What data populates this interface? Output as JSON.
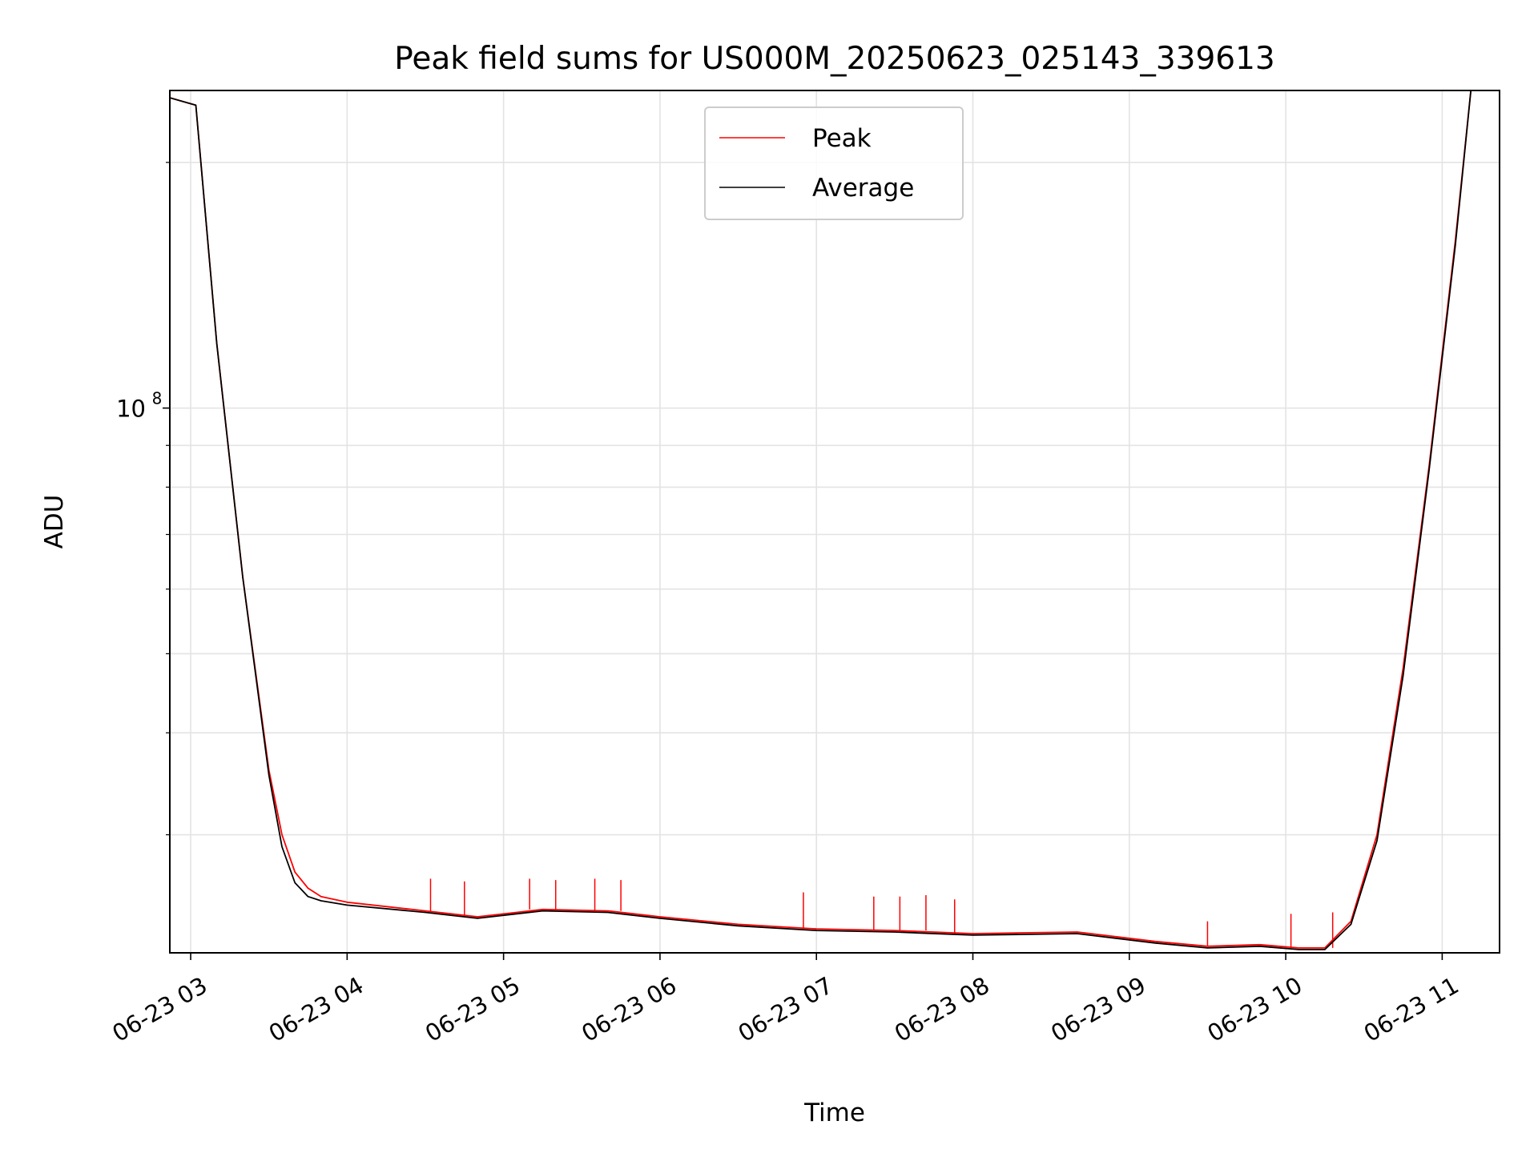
{
  "chart_data": {
    "type": "line",
    "title": "Peak field sums for US000M_20250623_025143_339613",
    "xlabel": "Time",
    "ylabel": "ADU",
    "y_scale": "log",
    "xlim": [
      "2025-06-23 02:52",
      "2025-06-23 11:22"
    ],
    "ylim": [
      21500000,
      245000000
    ],
    "grid": true,
    "legend_position": "top-center",
    "x_ticks": [
      "2025-06-23 03:00",
      "2025-06-23 04:00",
      "2025-06-23 05:00",
      "2025-06-23 06:00",
      "2025-06-23 07:00",
      "2025-06-23 08:00",
      "2025-06-23 09:00",
      "2025-06-23 10:00",
      "2025-06-23 11:00"
    ],
    "x_tick_labels": [
      "06-23 03",
      "06-23 04",
      "06-23 05",
      "06-23 06",
      "06-23 07",
      "06-23 08",
      "06-23 09",
      "06-23 10",
      "06-23 11"
    ],
    "y_tick_labels": [
      {
        "base": "10",
        "exp": "8",
        "value": 100000000
      }
    ],
    "y_minor_ticks": [
      30000000,
      40000000,
      50000000,
      60000000,
      70000000,
      80000000,
      90000000,
      200000000
    ],
    "series": [
      {
        "name": "Peak",
        "color": "#ff0000",
        "x": [
          "2025-06-23 02:52",
          "2025-06-23 03:02",
          "2025-06-23 03:10",
          "2025-06-23 03:20",
          "2025-06-23 03:30",
          "2025-06-23 03:35",
          "2025-06-23 03:40",
          "2025-06-23 03:45",
          "2025-06-23 03:50",
          "2025-06-23 04:00",
          "2025-06-23 04:30",
          "2025-06-23 04:50",
          "2025-06-23 05:15",
          "2025-06-23 05:40",
          "2025-06-23 06:00",
          "2025-06-23 06:30",
          "2025-06-23 07:00",
          "2025-06-23 07:30",
          "2025-06-23 08:00",
          "2025-06-23 08:40",
          "2025-06-23 09:10",
          "2025-06-23 09:30",
          "2025-06-23 09:50",
          "2025-06-23 10:05",
          "2025-06-23 10:15",
          "2025-06-23 10:25",
          "2025-06-23 10:35",
          "2025-06-23 10:45",
          "2025-06-23 10:55",
          "2025-06-23 11:05",
          "2025-06-23 11:11",
          "2025-06-23 11:22"
        ],
        "values": [
          240000000,
          235000000,
          120000000,
          62000000,
          36000000,
          30000000,
          27000000,
          25800000,
          25200000,
          24800000,
          24200000,
          23800000,
          24300000,
          24200000,
          23800000,
          23300000,
          23000000,
          22900000,
          22700000,
          22800000,
          22200000,
          21900000,
          22000000,
          21800000,
          21800000,
          23500000,
          30000000,
          48000000,
          85000000,
          160000000,
          245000000,
          245000000
        ],
        "spikes": [
          {
            "x": "2025-06-23 04:32",
            "value": 26500000
          },
          {
            "x": "2025-06-23 04:45",
            "value": 26300000
          },
          {
            "x": "2025-06-23 05:10",
            "value": 26500000
          },
          {
            "x": "2025-06-23 05:20",
            "value": 26400000
          },
          {
            "x": "2025-06-23 05:35",
            "value": 26500000
          },
          {
            "x": "2025-06-23 05:45",
            "value": 26400000
          },
          {
            "x": "2025-06-23 06:55",
            "value": 25500000
          },
          {
            "x": "2025-06-23 07:22",
            "value": 25200000
          },
          {
            "x": "2025-06-23 07:32",
            "value": 25200000
          },
          {
            "x": "2025-06-23 07:42",
            "value": 25300000
          },
          {
            "x": "2025-06-23 07:53",
            "value": 25000000
          },
          {
            "x": "2025-06-23 09:30",
            "value": 23500000
          },
          {
            "x": "2025-06-23 10:02",
            "value": 24000000
          },
          {
            "x": "2025-06-23 10:18",
            "value": 24100000
          }
        ]
      },
      {
        "name": "Average",
        "color": "#000000",
        "x": [
          "2025-06-23 02:52",
          "2025-06-23 03:02",
          "2025-06-23 03:10",
          "2025-06-23 03:20",
          "2025-06-23 03:30",
          "2025-06-23 03:35",
          "2025-06-23 03:40",
          "2025-06-23 03:45",
          "2025-06-23 03:50",
          "2025-06-23 04:00",
          "2025-06-23 04:30",
          "2025-06-23 04:50",
          "2025-06-23 05:15",
          "2025-06-23 05:40",
          "2025-06-23 06:00",
          "2025-06-23 06:30",
          "2025-06-23 07:00",
          "2025-06-23 07:30",
          "2025-06-23 08:00",
          "2025-06-23 08:40",
          "2025-06-23 09:10",
          "2025-06-23 09:30",
          "2025-06-23 09:50",
          "2025-06-23 10:05",
          "2025-06-23 10:15",
          "2025-06-23 10:25",
          "2025-06-23 10:35",
          "2025-06-23 10:45",
          "2025-06-23 10:55",
          "2025-06-23 11:05",
          "2025-06-23 11:11",
          "2025-06-23 11:22"
        ],
        "values": [
          240000000,
          235000000,
          120000000,
          62000000,
          35500000,
          29000000,
          26200000,
          25200000,
          24900000,
          24600000,
          24100000,
          23700000,
          24200000,
          24100000,
          23700000,
          23200000,
          22900000,
          22800000,
          22600000,
          22700000,
          22100000,
          21800000,
          21900000,
          21700000,
          21700000,
          23300000,
          29500000,
          47000000,
          84000000,
          158000000,
          245000000,
          245000000
        ]
      }
    ]
  }
}
